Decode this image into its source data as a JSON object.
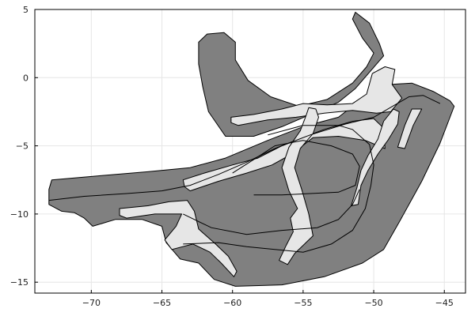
{
  "chart_data": {
    "type": "map",
    "title": "",
    "xlabel": "",
    "ylabel": "",
    "xlim": [
      -74,
      -43.5
    ],
    "ylim": [
      -15.8,
      5
    ],
    "grid": true,
    "legend": "none",
    "xticks": [
      {
        "value": -70,
        "label": "−70"
      },
      {
        "value": -65,
        "label": "−65"
      },
      {
        "value": -60,
        "label": "−60"
      },
      {
        "value": -55,
        "label": "−55"
      },
      {
        "value": -50,
        "label": "−50"
      },
      {
        "value": -45,
        "label": "−45"
      }
    ],
    "yticks": [
      {
        "value": 5,
        "label": "5"
      },
      {
        "value": 0,
        "label": "0"
      },
      {
        "value": -5,
        "label": "−5"
      },
      {
        "value": -10,
        "label": "−10"
      },
      {
        "value": -15,
        "label": "−15"
      }
    ],
    "colors": {
      "fill_dark": "#808080",
      "fill_light": "#e6e6e6",
      "outline": "#000000",
      "grid": "#e6e6e6",
      "axis": "#000000"
    },
    "regions": [
      {
        "name": "main-basin",
        "fill": "dark",
        "points": [
          [
            -72.8,
            -7.5
          ],
          [
            -69.5,
            -7.2
          ],
          [
            -66,
            -6.9
          ],
          [
            -63,
            -6.6
          ],
          [
            -60.5,
            -5.9
          ],
          [
            -57.5,
            -4.6
          ],
          [
            -55,
            -3.6
          ],
          [
            -52.5,
            -2.9
          ],
          [
            -50.5,
            -1.3
          ],
          [
            -48.8,
            -0.5
          ],
          [
            -47.3,
            -0.4
          ],
          [
            -45.8,
            -1.0
          ],
          [
            -44.6,
            -1.7
          ],
          [
            -44.3,
            -2.1
          ],
          [
            -45.3,
            -4.8
          ],
          [
            -46.6,
            -7.6
          ],
          [
            -48.2,
            -10.6
          ],
          [
            -49.3,
            -12.6
          ],
          [
            -50.8,
            -13.6
          ],
          [
            -53.5,
            -14.6
          ],
          [
            -56.5,
            -15.2
          ],
          [
            -59.8,
            -15.3
          ],
          [
            -61.3,
            -14.8
          ],
          [
            -62.4,
            -13.6
          ],
          [
            -63.7,
            -13.3
          ],
          [
            -64.7,
            -12.1
          ],
          [
            -65,
            -10.9
          ],
          [
            -66.4,
            -10.4
          ],
          [
            -68.3,
            -10.4
          ],
          [
            -69.9,
            -10.9
          ],
          [
            -70.5,
            -10.3
          ],
          [
            -71.2,
            -9.9
          ],
          [
            -72.1,
            -9.8
          ],
          [
            -73,
            -9.3
          ],
          [
            -73,
            -8.2
          ]
        ]
      },
      {
        "name": "upper-arm",
        "fill": "dark",
        "points": [
          [
            -61.8,
            3.2
          ],
          [
            -60.6,
            3.3
          ],
          [
            -59.8,
            2.6
          ],
          [
            -59.8,
            1.3
          ],
          [
            -58.9,
            -0.2
          ],
          [
            -57.3,
            -1.4
          ],
          [
            -55.3,
            -2.1
          ],
          [
            -53.3,
            -1.6
          ],
          [
            -51.5,
            -0.4
          ],
          [
            -50.5,
            0.8
          ],
          [
            -50,
            1.8
          ],
          [
            -50.8,
            2.9
          ],
          [
            -51.5,
            4.3
          ],
          [
            -51.3,
            4.8
          ],
          [
            -50.3,
            4.0
          ],
          [
            -49.6,
            2.5
          ],
          [
            -49.3,
            1.6
          ],
          [
            -50.3,
            0.4
          ],
          [
            -51.3,
            -0.8
          ],
          [
            -52.5,
            -1.8
          ],
          [
            -54.5,
            -2.7
          ],
          [
            -56.5,
            -3.6
          ],
          [
            -58.5,
            -4.3
          ],
          [
            -60.5,
            -4.3
          ],
          [
            -61.7,
            -2.5
          ],
          [
            -62.1,
            -0.7
          ],
          [
            -62.4,
            1.0
          ],
          [
            -62.4,
            2.6
          ]
        ]
      },
      {
        "name": "river-west",
        "fill": "light",
        "points": [
          [
            -68,
            -9.6
          ],
          [
            -66,
            -9.4
          ],
          [
            -64.5,
            -9.1
          ],
          [
            -63.2,
            -9.0
          ],
          [
            -62.7,
            -9.8
          ],
          [
            -62.4,
            -11.1
          ],
          [
            -61.2,
            -12.2
          ],
          [
            -60.3,
            -13.1
          ],
          [
            -59.7,
            -14.2
          ],
          [
            -59.9,
            -14.6
          ],
          [
            -60.8,
            -13.6
          ],
          [
            -61.6,
            -12.8
          ],
          [
            -62.8,
            -12.2
          ],
          [
            -64.3,
            -12.6
          ],
          [
            -64.8,
            -11.9
          ],
          [
            -64,
            -10.9
          ],
          [
            -63.6,
            -10.0
          ],
          [
            -65.5,
            -10.0
          ],
          [
            -67.5,
            -10.3
          ],
          [
            -68,
            -10.1
          ]
        ]
      },
      {
        "name": "river-central",
        "fill": "light",
        "points": [
          [
            -63.5,
            -7.5
          ],
          [
            -62,
            -7.0
          ],
          [
            -60,
            -6.4
          ],
          [
            -58.2,
            -5.9
          ],
          [
            -56.5,
            -5.0
          ],
          [
            -55.3,
            -4.5
          ],
          [
            -53.5,
            -3.8
          ],
          [
            -51.5,
            -3.2
          ],
          [
            -50,
            -3.0
          ],
          [
            -49.3,
            -3.7
          ],
          [
            -49.2,
            -5.2
          ],
          [
            -50.6,
            -4.6
          ],
          [
            -52.5,
            -4.3
          ],
          [
            -54.3,
            -4.4
          ],
          [
            -55.8,
            -5.6
          ],
          [
            -57.2,
            -6.4
          ],
          [
            -59,
            -7.0
          ],
          [
            -61,
            -7.6
          ],
          [
            -63,
            -8.3
          ],
          [
            -63.4,
            -8.0
          ]
        ]
      },
      {
        "name": "river-north",
        "fill": "light",
        "points": [
          [
            -60.1,
            -2.9
          ],
          [
            -58.5,
            -2.7
          ],
          [
            -56.5,
            -2.3
          ],
          [
            -55,
            -1.9
          ],
          [
            -53.3,
            -2.0
          ],
          [
            -51.5,
            -1.9
          ],
          [
            -50.5,
            -1.2
          ],
          [
            -50.1,
            0.3
          ],
          [
            -49.2,
            0.8
          ],
          [
            -48.5,
            0.6
          ],
          [
            -48.7,
            -0.5
          ],
          [
            -48,
            -1.5
          ],
          [
            -48.8,
            -2.5
          ],
          [
            -49.8,
            -2.6
          ],
          [
            -51.5,
            -2.4
          ],
          [
            -53.5,
            -2.6
          ],
          [
            -55.5,
            -2.9
          ],
          [
            -57.5,
            -3.1
          ],
          [
            -59.6,
            -3.5
          ],
          [
            -60.1,
            -3.3
          ]
        ]
      },
      {
        "name": "river-trunk",
        "fill": "light",
        "points": [
          [
            -54.1,
            -2.3
          ],
          [
            -53.9,
            -2.9
          ],
          [
            -54.3,
            -4.1
          ],
          [
            -55.2,
            -5.2
          ],
          [
            -55.6,
            -6.6
          ],
          [
            -55.1,
            -8.2
          ],
          [
            -54.6,
            -10.0
          ],
          [
            -54.3,
            -11.6
          ],
          [
            -55.6,
            -12.9
          ],
          [
            -56.1,
            -13.7
          ],
          [
            -56.7,
            -13.4
          ],
          [
            -56.2,
            -12.3
          ],
          [
            -55.7,
            -11.3
          ],
          [
            -55.9,
            -10.3
          ],
          [
            -55.4,
            -9.6
          ],
          [
            -56.0,
            -8.3
          ],
          [
            -56.5,
            -6.6
          ],
          [
            -56.0,
            -5.1
          ],
          [
            -55.2,
            -3.9
          ],
          [
            -54.8,
            -2.8
          ],
          [
            -54.6,
            -2.2
          ]
        ]
      },
      {
        "name": "river-east-1",
        "fill": "light",
        "points": [
          [
            -48.6,
            -2.3
          ],
          [
            -48.2,
            -2.5
          ],
          [
            -48.3,
            -3.4
          ],
          [
            -49.0,
            -4.6
          ],
          [
            -49.7,
            -5.6
          ],
          [
            -50.4,
            -6.8
          ],
          [
            -50.9,
            -7.9
          ],
          [
            -51.1,
            -9.3
          ],
          [
            -51.6,
            -9.4
          ],
          [
            -51.2,
            -8.1
          ],
          [
            -50.9,
            -6.8
          ],
          [
            -50.4,
            -5.7
          ],
          [
            -49.7,
            -4.5
          ],
          [
            -49.3,
            -3.2
          ]
        ]
      },
      {
        "name": "river-east-2",
        "fill": "light",
        "points": [
          [
            -47.3,
            -2.3
          ],
          [
            -46.6,
            -2.3
          ],
          [
            -47.2,
            -3.5
          ],
          [
            -47.8,
            -5.2
          ],
          [
            -48.3,
            -5.1
          ],
          [
            -47.8,
            -3.5
          ]
        ]
      }
    ],
    "lines": [
      {
        "name": "contour-outer",
        "points": [
          [
            -73,
            -9.0
          ],
          [
            -70.5,
            -8.7
          ],
          [
            -67.5,
            -8.5
          ],
          [
            -65,
            -8.3
          ],
          [
            -63,
            -7.9
          ],
          [
            -61,
            -7.1
          ],
          [
            -59,
            -6.2
          ],
          [
            -57,
            -5.2
          ],
          [
            -54.5,
            -4.2
          ],
          [
            -52,
            -3.4
          ],
          [
            -50,
            -2.9
          ],
          [
            -48.5,
            -2.0
          ],
          [
            -47.5,
            -1.4
          ],
          [
            -46.5,
            -1.3
          ],
          [
            -45.3,
            -1.9
          ]
        ]
      },
      {
        "name": "contour-mid",
        "points": [
          [
            -63.5,
            -12.2
          ],
          [
            -61,
            -12.1
          ],
          [
            -59,
            -12.4
          ],
          [
            -57,
            -12.6
          ],
          [
            -55,
            -12.8
          ],
          [
            -53,
            -12.2
          ],
          [
            -51.5,
            -11.2
          ],
          [
            -50.6,
            -9.6
          ],
          [
            -50.2,
            -7.9
          ],
          [
            -50,
            -6.4
          ],
          [
            -50.3,
            -4.9
          ],
          [
            -51.5,
            -3.8
          ],
          [
            -52.5,
            -3.5
          ],
          [
            -55,
            -3.5
          ],
          [
            -57.5,
            -4.2
          ]
        ]
      },
      {
        "name": "contour-inner",
        "points": [
          [
            -60,
            -7.0
          ],
          [
            -58.5,
            -6.0
          ],
          [
            -57,
            -5.0
          ],
          [
            -55,
            -4.6
          ],
          [
            -53,
            -5.0
          ],
          [
            -51.5,
            -5.6
          ],
          [
            -51,
            -6.5
          ],
          [
            -51.3,
            -7.9
          ],
          [
            -52.5,
            -8.4
          ],
          [
            -54.5,
            -8.5
          ],
          [
            -56.5,
            -8.6
          ],
          [
            -58.5,
            -8.6
          ]
        ]
      },
      {
        "name": "contour-lower",
        "points": [
          [
            -63.5,
            -10.0
          ],
          [
            -61.5,
            -11.0
          ],
          [
            -59,
            -11.5
          ],
          [
            -56.5,
            -11.2
          ],
          [
            -54,
            -11.0
          ],
          [
            -52.5,
            -10.4
          ],
          [
            -51.5,
            -9.3
          ],
          [
            -51,
            -8.2
          ]
        ]
      }
    ]
  }
}
